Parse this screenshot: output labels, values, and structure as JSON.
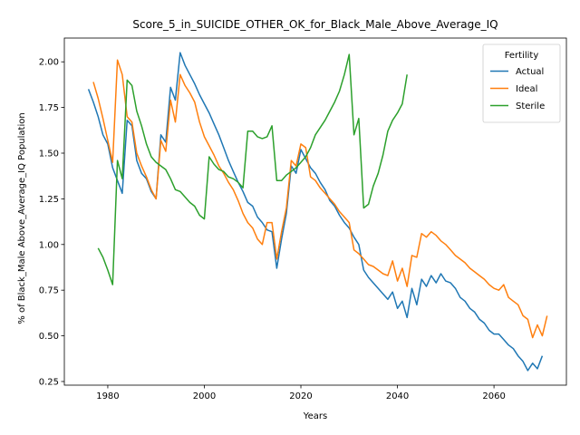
{
  "chart_data": {
    "type": "line",
    "title": "Score_5_in_SUICIDE_OTHER_OK_for_Black_Male_Above_Average_IQ",
    "xlabel": "Years",
    "ylabel": "% of Black_Male Above_Average_IQ Population",
    "xlim": [
      1971,
      2075
    ],
    "ylim": [
      0.23,
      2.13
    ],
    "xticks": [
      1980,
      2000,
      2020,
      2040,
      2060
    ],
    "xtick_labels": [
      "1980",
      "2000",
      "2020",
      "2040",
      "2060"
    ],
    "yticks": [
      0.25,
      0.5,
      0.75,
      1.0,
      1.25,
      1.5,
      1.75,
      2.0
    ],
    "ytick_labels": [
      "0.25",
      "0.50",
      "0.75",
      "1.00",
      "1.25",
      "1.50",
      "1.75",
      "2.00"
    ],
    "grid": false,
    "legend": {
      "title": "Fertility",
      "placement": "top-right"
    },
    "series": [
      {
        "name": "Actual",
        "color": "#1f77b4",
        "points": [
          [
            1976,
            1.85
          ],
          [
            1977,
            1.78
          ],
          [
            1978,
            1.7
          ],
          [
            1979,
            1.6
          ],
          [
            1980,
            1.55
          ],
          [
            1981,
            1.42
          ],
          [
            1982,
            1.35
          ],
          [
            1983,
            1.28
          ],
          [
            1984,
            1.68
          ],
          [
            1985,
            1.65
          ],
          [
            1986,
            1.46
          ],
          [
            1987,
            1.39
          ],
          [
            1988,
            1.36
          ],
          [
            1989,
            1.29
          ],
          [
            1990,
            1.25
          ],
          [
            1991,
            1.6
          ],
          [
            1992,
            1.56
          ],
          [
            1993,
            1.86
          ],
          [
            1994,
            1.79
          ],
          [
            1995,
            2.05
          ],
          [
            1996,
            1.98
          ],
          [
            1997,
            1.93
          ],
          [
            1998,
            1.88
          ],
          [
            1999,
            1.82
          ],
          [
            2000,
            1.77
          ],
          [
            2001,
            1.72
          ],
          [
            2002,
            1.66
          ],
          [
            2003,
            1.6
          ],
          [
            2004,
            1.53
          ],
          [
            2005,
            1.46
          ],
          [
            2006,
            1.4
          ],
          [
            2007,
            1.34
          ],
          [
            2008,
            1.29
          ],
          [
            2009,
            1.23
          ],
          [
            2010,
            1.21
          ],
          [
            2011,
            1.15
          ],
          [
            2012,
            1.12
          ],
          [
            2013,
            1.08
          ],
          [
            2014,
            1.07
          ],
          [
            2015,
            0.87
          ],
          [
            2016,
            1.03
          ],
          [
            2017,
            1.17
          ],
          [
            2018,
            1.43
          ],
          [
            2019,
            1.39
          ],
          [
            2020,
            1.52
          ],
          [
            2021,
            1.47
          ],
          [
            2022,
            1.42
          ],
          [
            2023,
            1.39
          ],
          [
            2024,
            1.34
          ],
          [
            2025,
            1.3
          ],
          [
            2026,
            1.24
          ],
          [
            2027,
            1.21
          ],
          [
            2028,
            1.16
          ],
          [
            2029,
            1.12
          ],
          [
            2030,
            1.09
          ],
          [
            2031,
            1.04
          ],
          [
            2032,
            1.0
          ],
          [
            2033,
            0.86
          ],
          [
            2034,
            0.82
          ],
          [
            2035,
            0.79
          ],
          [
            2036,
            0.76
          ],
          [
            2037,
            0.73
          ],
          [
            2038,
            0.7
          ],
          [
            2039,
            0.74
          ],
          [
            2040,
            0.65
          ],
          [
            2041,
            0.69
          ],
          [
            2042,
            0.6
          ],
          [
            2043,
            0.76
          ],
          [
            2044,
            0.67
          ],
          [
            2045,
            0.81
          ],
          [
            2046,
            0.77
          ],
          [
            2047,
            0.83
          ],
          [
            2048,
            0.79
          ],
          [
            2049,
            0.84
          ],
          [
            2050,
            0.8
          ],
          [
            2051,
            0.79
          ],
          [
            2052,
            0.76
          ],
          [
            2053,
            0.71
          ],
          [
            2054,
            0.69
          ],
          [
            2055,
            0.65
          ],
          [
            2056,
            0.63
          ],
          [
            2057,
            0.59
          ],
          [
            2058,
            0.57
          ],
          [
            2059,
            0.53
          ],
          [
            2060,
            0.51
          ],
          [
            2061,
            0.51
          ],
          [
            2062,
            0.48
          ],
          [
            2063,
            0.45
          ],
          [
            2064,
            0.43
          ],
          [
            2065,
            0.39
          ],
          [
            2066,
            0.36
          ],
          [
            2067,
            0.31
          ],
          [
            2068,
            0.35
          ],
          [
            2069,
            0.32
          ],
          [
            2070,
            0.39
          ]
        ]
      },
      {
        "name": "Ideal",
        "color": "#ff7f0e",
        "points": [
          [
            1977,
            1.89
          ],
          [
            1978,
            1.8
          ],
          [
            1979,
            1.69
          ],
          [
            1980,
            1.57
          ],
          [
            1981,
            1.45
          ],
          [
            1982,
            2.01
          ],
          [
            1983,
            1.93
          ],
          [
            1984,
            1.7
          ],
          [
            1985,
            1.67
          ],
          [
            1986,
            1.5
          ],
          [
            1987,
            1.43
          ],
          [
            1988,
            1.37
          ],
          [
            1989,
            1.3
          ],
          [
            1990,
            1.25
          ],
          [
            1991,
            1.57
          ],
          [
            1992,
            1.51
          ],
          [
            1993,
            1.79
          ],
          [
            1994,
            1.67
          ],
          [
            1995,
            1.93
          ],
          [
            1996,
            1.87
          ],
          [
            1997,
            1.83
          ],
          [
            1998,
            1.78
          ],
          [
            1999,
            1.67
          ],
          [
            2000,
            1.59
          ],
          [
            2001,
            1.54
          ],
          [
            2002,
            1.49
          ],
          [
            2003,
            1.43
          ],
          [
            2004,
            1.39
          ],
          [
            2005,
            1.34
          ],
          [
            2006,
            1.3
          ],
          [
            2007,
            1.24
          ],
          [
            2008,
            1.17
          ],
          [
            2009,
            1.12
          ],
          [
            2010,
            1.09
          ],
          [
            2011,
            1.03
          ],
          [
            2012,
            1.0
          ],
          [
            2013,
            1.12
          ],
          [
            2014,
            1.12
          ],
          [
            2015,
            0.92
          ],
          [
            2016,
            1.07
          ],
          [
            2017,
            1.2
          ],
          [
            2018,
            1.46
          ],
          [
            2019,
            1.43
          ],
          [
            2020,
            1.55
          ],
          [
            2021,
            1.53
          ],
          [
            2022,
            1.37
          ],
          [
            2023,
            1.35
          ],
          [
            2024,
            1.31
          ],
          [
            2025,
            1.28
          ],
          [
            2026,
            1.25
          ],
          [
            2027,
            1.22
          ],
          [
            2028,
            1.18
          ],
          [
            2029,
            1.15
          ],
          [
            2030,
            1.12
          ],
          [
            2031,
            0.97
          ],
          [
            2032,
            0.95
          ],
          [
            2033,
            0.92
          ],
          [
            2034,
            0.89
          ],
          [
            2035,
            0.88
          ],
          [
            2036,
            0.86
          ],
          [
            2037,
            0.84
          ],
          [
            2038,
            0.83
          ],
          [
            2039,
            0.91
          ],
          [
            2040,
            0.8
          ],
          [
            2041,
            0.87
          ],
          [
            2042,
            0.77
          ],
          [
            2043,
            0.94
          ],
          [
            2044,
            0.93
          ],
          [
            2045,
            1.06
          ],
          [
            2046,
            1.04
          ],
          [
            2047,
            1.07
          ],
          [
            2048,
            1.05
          ],
          [
            2049,
            1.02
          ],
          [
            2050,
            1.0
          ],
          [
            2051,
            0.97
          ],
          [
            2052,
            0.94
          ],
          [
            2053,
            0.92
          ],
          [
            2054,
            0.9
          ],
          [
            2055,
            0.87
          ],
          [
            2056,
            0.85
          ],
          [
            2057,
            0.83
          ],
          [
            2058,
            0.81
          ],
          [
            2059,
            0.78
          ],
          [
            2060,
            0.76
          ],
          [
            2061,
            0.75
          ],
          [
            2062,
            0.78
          ],
          [
            2063,
            0.71
          ],
          [
            2064,
            0.69
          ],
          [
            2065,
            0.67
          ],
          [
            2066,
            0.61
          ],
          [
            2067,
            0.59
          ],
          [
            2068,
            0.49
          ],
          [
            2069,
            0.56
          ],
          [
            2070,
            0.5
          ],
          [
            2071,
            0.61
          ]
        ]
      },
      {
        "name": "Sterile",
        "color": "#2ca02c",
        "points": [
          [
            1978,
            0.98
          ],
          [
            1979,
            0.93
          ],
          [
            1980,
            0.86
          ],
          [
            1981,
            0.78
          ],
          [
            1982,
            1.46
          ],
          [
            1983,
            1.36
          ],
          [
            1984,
            1.9
          ],
          [
            1985,
            1.87
          ],
          [
            1986,
            1.73
          ],
          [
            1987,
            1.65
          ],
          [
            1988,
            1.55
          ],
          [
            1989,
            1.48
          ],
          [
            1990,
            1.45
          ],
          [
            1991,
            1.43
          ],
          [
            1992,
            1.41
          ],
          [
            1993,
            1.36
          ],
          [
            1994,
            1.3
          ],
          [
            1995,
            1.29
          ],
          [
            1996,
            1.26
          ],
          [
            1997,
            1.23
          ],
          [
            1998,
            1.21
          ],
          [
            1999,
            1.16
          ],
          [
            2000,
            1.14
          ],
          [
            2001,
            1.48
          ],
          [
            2002,
            1.44
          ],
          [
            2003,
            1.41
          ],
          [
            2004,
            1.4
          ],
          [
            2005,
            1.37
          ],
          [
            2006,
            1.36
          ],
          [
            2007,
            1.34
          ],
          [
            2008,
            1.31
          ],
          [
            2009,
            1.62
          ],
          [
            2010,
            1.62
          ],
          [
            2011,
            1.59
          ],
          [
            2012,
            1.58
          ],
          [
            2013,
            1.59
          ],
          [
            2014,
            1.65
          ],
          [
            2015,
            1.35
          ],
          [
            2016,
            1.35
          ],
          [
            2017,
            1.38
          ],
          [
            2018,
            1.4
          ],
          [
            2019,
            1.42
          ],
          [
            2020,
            1.45
          ],
          [
            2021,
            1.48
          ],
          [
            2022,
            1.53
          ],
          [
            2023,
            1.6
          ],
          [
            2024,
            1.64
          ],
          [
            2025,
            1.68
          ],
          [
            2026,
            1.73
          ],
          [
            2027,
            1.78
          ],
          [
            2028,
            1.84
          ],
          [
            2029,
            1.93
          ],
          [
            2030,
            2.04
          ],
          [
            2031,
            1.6
          ],
          [
            2032,
            1.69
          ],
          [
            2033,
            1.2
          ],
          [
            2034,
            1.22
          ],
          [
            2035,
            1.32
          ],
          [
            2036,
            1.39
          ],
          [
            2037,
            1.49
          ],
          [
            2038,
            1.62
          ],
          [
            2039,
            1.68
          ],
          [
            2040,
            1.72
          ],
          [
            2041,
            1.77
          ],
          [
            2042,
            1.93
          ]
        ]
      }
    ]
  }
}
